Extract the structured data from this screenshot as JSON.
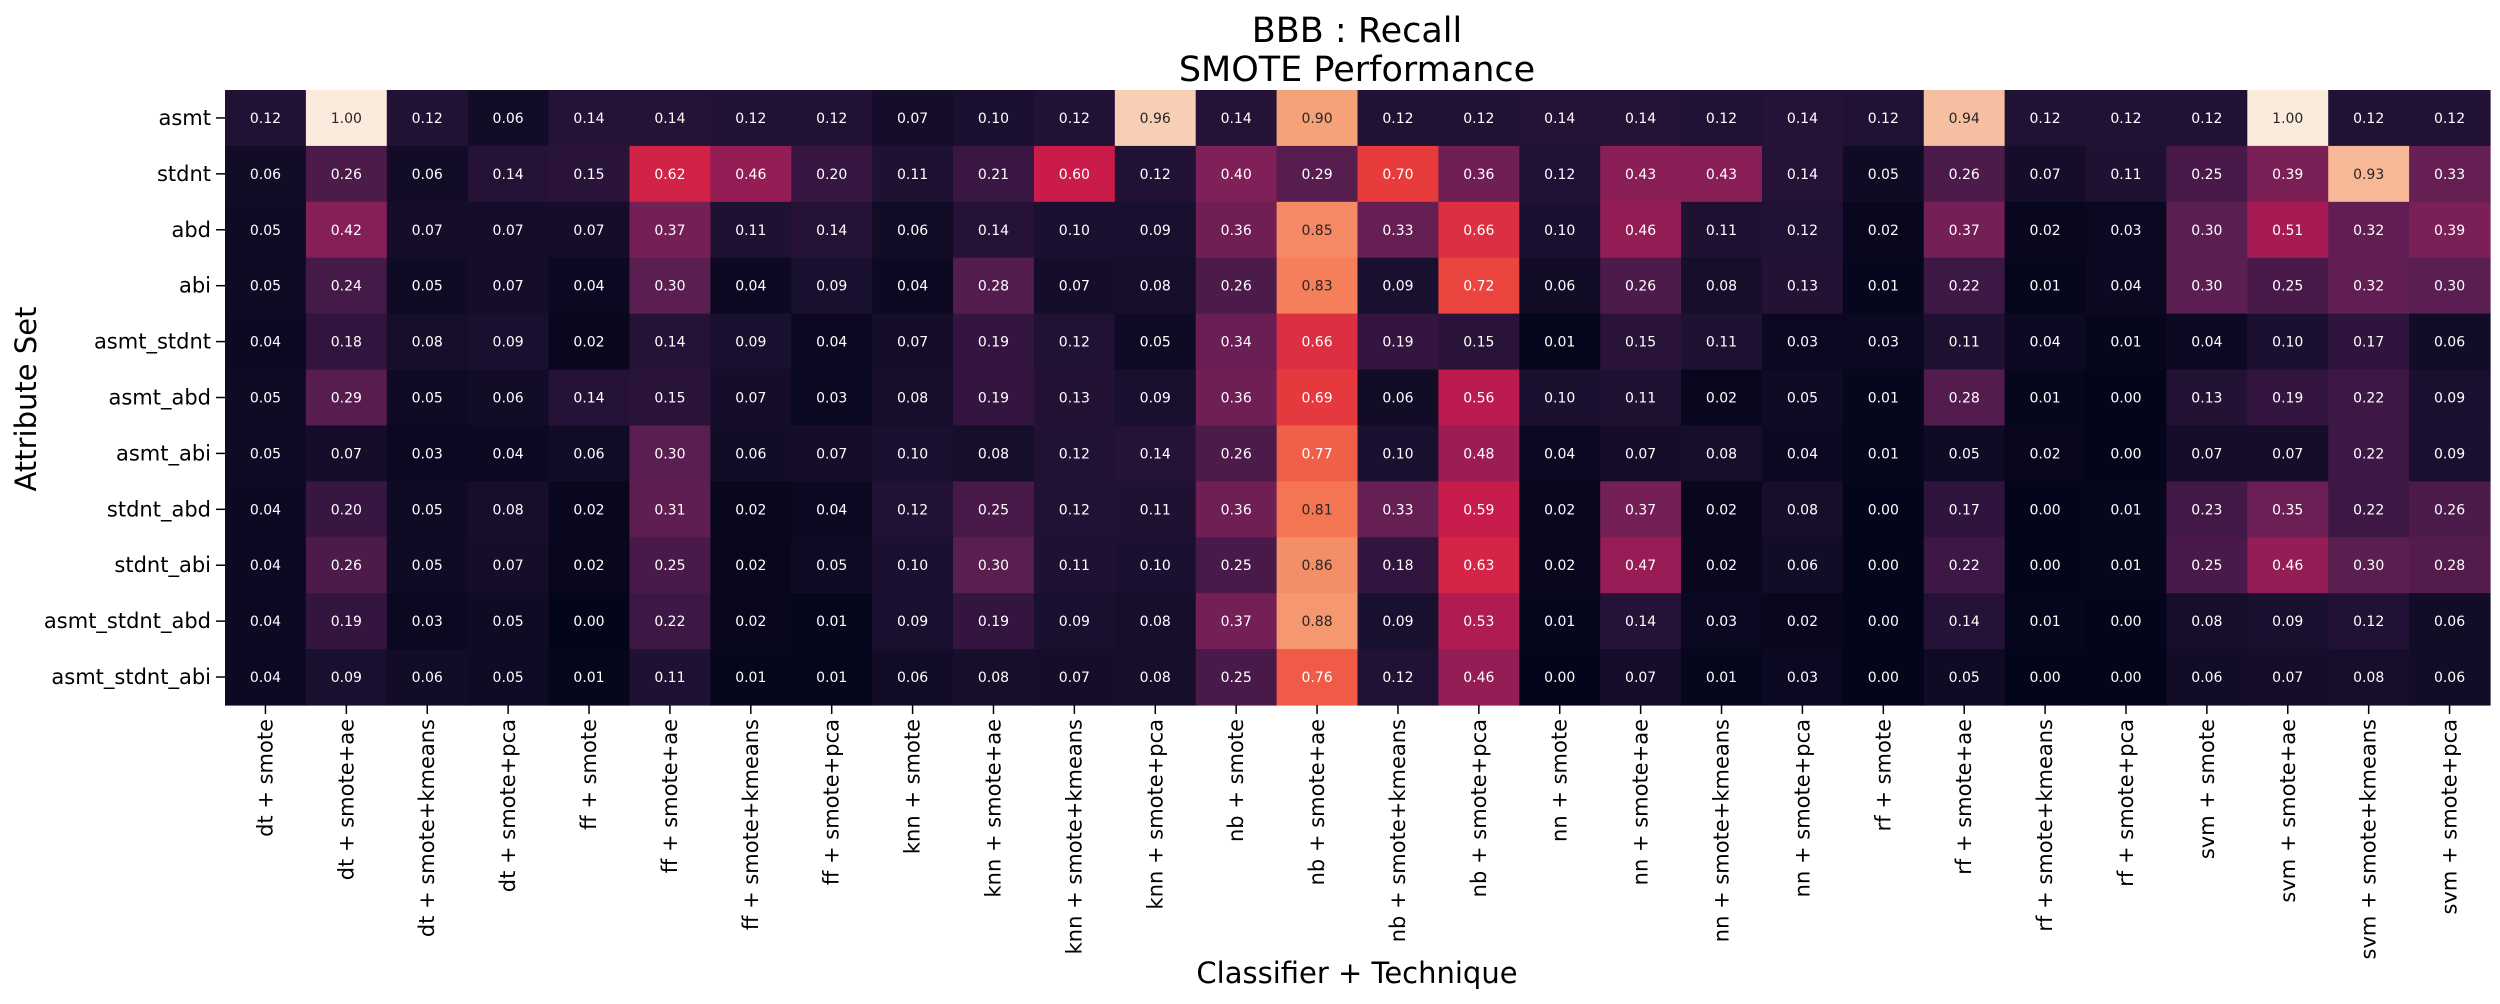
{
  "chart_data": {
    "type": "heatmap",
    "title": "BBB : Recall",
    "subtitle": "SMOTE Performance",
    "xlabel": "Classifier + Technique",
    "ylabel": "Attribute Set",
    "color_scale": "rocket",
    "value_range": [
      0,
      1
    ],
    "colorbar": false,
    "grid": false,
    "x_categories": [
      "dt + smote",
      "dt + smote+ae",
      "dt + smote+kmeans",
      "dt + smote+pca",
      "ff + smote",
      "ff + smote+ae",
      "ff + smote+kmeans",
      "ff + smote+pca",
      "knn + smote",
      "knn + smote+ae",
      "knn + smote+kmeans",
      "knn + smote+pca",
      "nb + smote",
      "nb + smote+ae",
      "nb + smote+kmeans",
      "nb + smote+pca",
      "nn + smote",
      "nn + smote+ae",
      "nn + smote+kmeans",
      "nn + smote+pca",
      "rf + smote",
      "rf + smote+ae",
      "rf + smote+kmeans",
      "rf + smote+pca",
      "svm + smote",
      "svm + smote+ae",
      "svm + smote+kmeans",
      "svm + smote+pca"
    ],
    "y_categories": [
      "asmt",
      "stdnt",
      "abd",
      "abi",
      "asmt_stdnt",
      "asmt_abd",
      "asmt_abi",
      "stdnt_abd",
      "stdnt_abi",
      "asmt_stdnt_abd",
      "asmt_stdnt_abi"
    ],
    "values": [
      [
        0.12,
        1.0,
        0.12,
        0.06,
        0.14,
        0.14,
        0.12,
        0.12,
        0.07,
        0.1,
        0.12,
        0.96,
        0.14,
        0.9,
        0.12,
        0.12,
        0.14,
        0.14,
        0.12,
        0.14,
        0.12,
        0.94,
        0.12,
        0.12,
        0.12,
        1.0,
        0.12,
        0.12
      ],
      [
        0.06,
        0.26,
        0.06,
        0.14,
        0.15,
        0.62,
        0.46,
        0.2,
        0.11,
        0.21,
        0.6,
        0.12,
        0.4,
        0.29,
        0.7,
        0.36,
        0.12,
        0.43,
        0.43,
        0.14,
        0.05,
        0.26,
        0.07,
        0.11,
        0.25,
        0.39,
        0.93,
        0.33
      ],
      [
        0.05,
        0.42,
        0.07,
        0.07,
        0.07,
        0.37,
        0.11,
        0.14,
        0.06,
        0.14,
        0.1,
        0.09,
        0.36,
        0.85,
        0.33,
        0.66,
        0.1,
        0.46,
        0.11,
        0.12,
        0.02,
        0.37,
        0.02,
        0.03,
        0.3,
        0.51,
        0.32,
        0.39
      ],
      [
        0.05,
        0.24,
        0.05,
        0.07,
        0.04,
        0.3,
        0.04,
        0.09,
        0.04,
        0.28,
        0.07,
        0.08,
        0.26,
        0.83,
        0.09,
        0.72,
        0.06,
        0.26,
        0.08,
        0.13,
        0.01,
        0.22,
        0.01,
        0.04,
        0.3,
        0.25,
        0.32,
        0.3
      ],
      [
        0.04,
        0.18,
        0.08,
        0.09,
        0.02,
        0.14,
        0.09,
        0.04,
        0.07,
        0.19,
        0.12,
        0.05,
        0.34,
        0.66,
        0.19,
        0.15,
        0.01,
        0.15,
        0.11,
        0.03,
        0.03,
        0.11,
        0.04,
        0.01,
        0.04,
        0.1,
        0.17,
        0.06
      ],
      [
        0.05,
        0.29,
        0.05,
        0.06,
        0.14,
        0.15,
        0.07,
        0.03,
        0.08,
        0.19,
        0.13,
        0.09,
        0.36,
        0.69,
        0.06,
        0.56,
        0.1,
        0.11,
        0.02,
        0.05,
        0.01,
        0.28,
        0.01,
        0.0,
        0.13,
        0.19,
        0.22,
        0.09
      ],
      [
        0.05,
        0.07,
        0.03,
        0.04,
        0.06,
        0.3,
        0.06,
        0.07,
        0.1,
        0.08,
        0.12,
        0.14,
        0.26,
        0.77,
        0.1,
        0.48,
        0.04,
        0.07,
        0.08,
        0.04,
        0.01,
        0.05,
        0.02,
        0.0,
        0.07,
        0.07,
        0.22,
        0.09
      ],
      [
        0.04,
        0.2,
        0.05,
        0.08,
        0.02,
        0.31,
        0.02,
        0.04,
        0.12,
        0.25,
        0.12,
        0.11,
        0.36,
        0.81,
        0.33,
        0.59,
        0.02,
        0.37,
        0.02,
        0.08,
        0.0,
        0.17,
        0.0,
        0.01,
        0.23,
        0.35,
        0.22,
        0.26
      ],
      [
        0.04,
        0.26,
        0.05,
        0.07,
        0.02,
        0.25,
        0.02,
        0.05,
        0.1,
        0.3,
        0.11,
        0.1,
        0.25,
        0.86,
        0.18,
        0.63,
        0.02,
        0.47,
        0.02,
        0.06,
        0.0,
        0.22,
        0.0,
        0.01,
        0.25,
        0.46,
        0.3,
        0.28
      ],
      [
        0.04,
        0.19,
        0.03,
        0.05,
        0.0,
        0.22,
        0.02,
        0.01,
        0.09,
        0.19,
        0.09,
        0.08,
        0.37,
        0.88,
        0.09,
        0.53,
        0.01,
        0.14,
        0.03,
        0.02,
        0.0,
        0.14,
        0.01,
        0.0,
        0.08,
        0.09,
        0.12,
        0.06
      ],
      [
        0.04,
        0.09,
        0.06,
        0.05,
        0.01,
        0.11,
        0.01,
        0.01,
        0.06,
        0.08,
        0.07,
        0.08,
        0.25,
        0.76,
        0.12,
        0.46,
        0.0,
        0.07,
        0.01,
        0.03,
        0.0,
        0.05,
        0.0,
        0.0,
        0.06,
        0.07,
        0.08,
        0.06
      ]
    ]
  }
}
